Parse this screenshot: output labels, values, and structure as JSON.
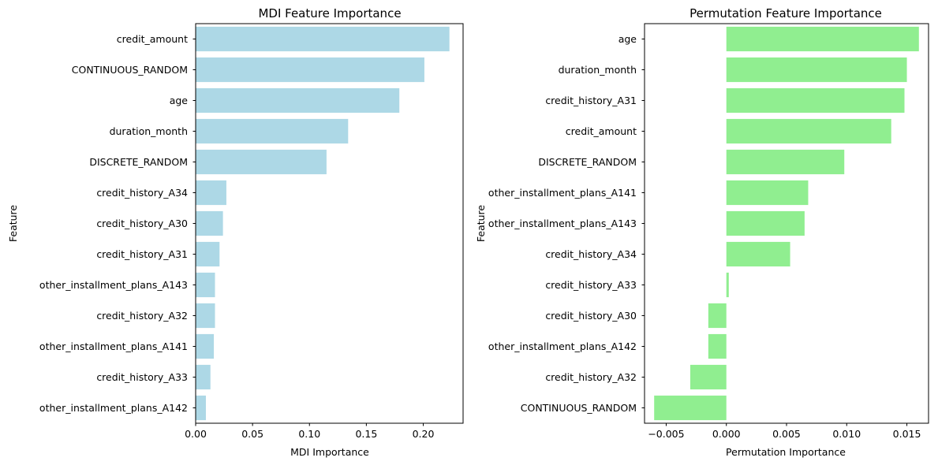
{
  "chart_data": [
    {
      "type": "bar",
      "orientation": "horizontal",
      "title": "MDI Feature Importance",
      "xlabel": "MDI Importance",
      "ylabel": "Feature",
      "xlim": [
        0,
        0.235
      ],
      "xticks": [
        0.0,
        0.05,
        0.1,
        0.15,
        0.2
      ],
      "xtick_labels": [
        "0.00",
        "0.05",
        "0.10",
        "0.15",
        "0.20"
      ],
      "bar_color": "#add8e6",
      "grid": false,
      "categories": [
        "credit_amount",
        "CONTINUOUS_RANDOM",
        "age",
        "duration_month",
        "DISCRETE_RANDOM",
        "credit_history_A34",
        "credit_history_A30",
        "credit_history_A31",
        "other_installment_plans_A143",
        "credit_history_A32",
        "other_installment_plans_A141",
        "credit_history_A33",
        "other_installment_plans_A142"
      ],
      "values": [
        0.223,
        0.201,
        0.179,
        0.134,
        0.115,
        0.027,
        0.024,
        0.021,
        0.017,
        0.017,
        0.016,
        0.013,
        0.009
      ]
    },
    {
      "type": "bar",
      "orientation": "horizontal",
      "title": "Permutation Feature Importance",
      "xlabel": "Permutation Importance",
      "ylabel": "Feature",
      "xlim": [
        -0.0068,
        0.0168
      ],
      "xticks": [
        -0.005,
        0.0,
        0.005,
        0.01,
        0.015
      ],
      "xtick_labels": [
        "−0.005",
        "0.000",
        "0.005",
        "0.010",
        "0.015"
      ],
      "bar_color": "#90ee90",
      "grid": false,
      "categories": [
        "age",
        "duration_month",
        "credit_history_A31",
        "credit_amount",
        "DISCRETE_RANDOM",
        "other_installment_plans_A141",
        "other_installment_plans_A143",
        "credit_history_A34",
        "credit_history_A33",
        "credit_history_A30",
        "other_installment_plans_A142",
        "credit_history_A32",
        "CONTINUOUS_RANDOM"
      ],
      "values": [
        0.016,
        0.015,
        0.0148,
        0.0137,
        0.0098,
        0.0068,
        0.0065,
        0.0053,
        0.0002,
        -0.0015,
        -0.0015,
        -0.003,
        -0.006
      ]
    }
  ]
}
